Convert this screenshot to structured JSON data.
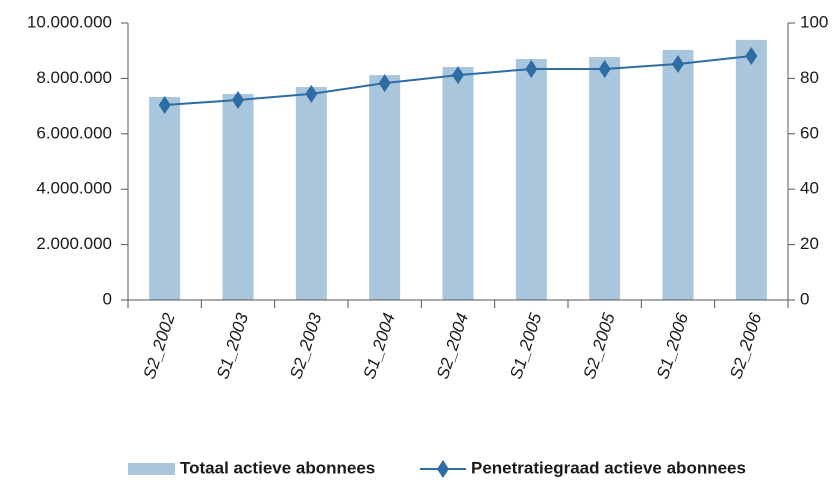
{
  "chart_data": {
    "type": "bar-line",
    "categories": [
      "S2_2002",
      "S1_2003",
      "S2_2003",
      "S1_2004",
      "S2_2004",
      "S1_2005",
      "S2_2005",
      "S1_2006",
      "S2_2006"
    ],
    "series": [
      {
        "name": "Totaal actieve abonnees",
        "color": "#a9c6dc",
        "type": "bar",
        "values": [
          7330000,
          7440000,
          7690000,
          8120000,
          8410000,
          8700000,
          8770000,
          9030000,
          9390000
        ]
      },
      {
        "name": "Penetratiegraad actieve abonnees",
        "color": "#2e6da4",
        "type": "line",
        "axis": "y2",
        "values": [
          70.4,
          72.2,
          74.4,
          78.3,
          81.2,
          83.4,
          83.4,
          85.2,
          88.1
        ]
      }
    ],
    "ylim": [
      0,
      10000000
    ],
    "yticks": [
      0,
      {
        "value": 2000000,
        "label": "2.000.000"
      },
      {
        "value": 4000000,
        "label": "4.000.000"
      },
      {
        "value": 6000000,
        "label": "6.000.000"
      },
      {
        "value": 8000000,
        "label": "8.000.000"
      },
      {
        "value": 10000000,
        "label": "10.000.000"
      }
    ],
    "y2lim": [
      0,
      100
    ],
    "y2ticks": [
      0,
      20,
      40,
      60,
      80,
      100
    ],
    "legend": "bottom"
  }
}
